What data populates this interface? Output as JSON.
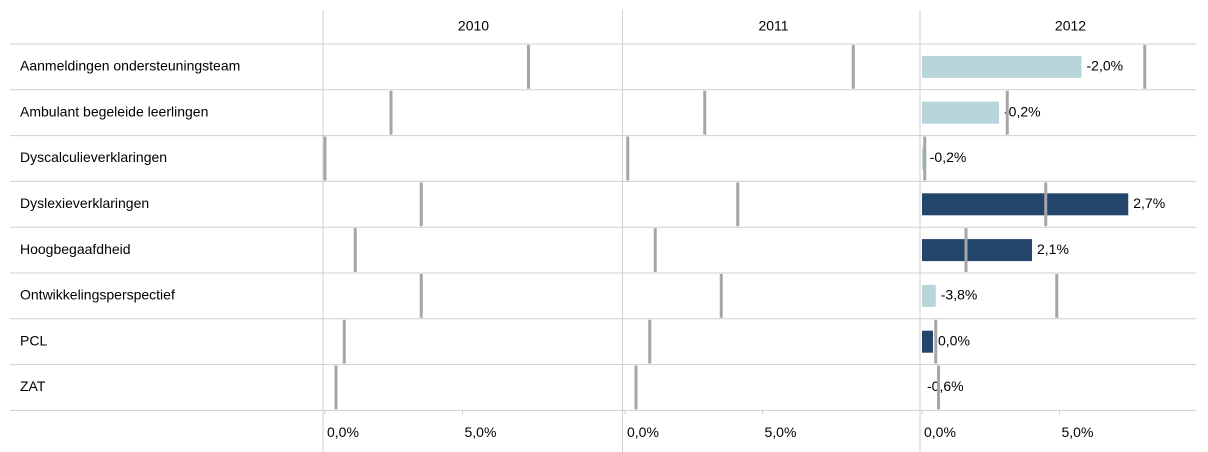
{
  "chart_data": {
    "type": "bar",
    "orientation": "horizontal",
    "categories": [
      "Aanmeldingen ondersteuningsteam",
      "Ambulant begeleide leerlingen",
      "Dyscalculieverklaringen",
      "Dyslexieverklaringen",
      "Hoogbegaafdheid",
      "Ontwikkelingsperspectief",
      "PCL",
      "ZAT"
    ],
    "xlim": [
      0,
      10.8
    ],
    "xticks": [
      {
        "value": 0,
        "label": "0,0%"
      },
      {
        "value": 5,
        "label": "5,0%"
      }
    ],
    "marker_color": "#a6a6a6",
    "colors": {
      "negative": "#b7d5db",
      "positive": "#23446b"
    },
    "series": [
      {
        "name": "2010",
        "reference": [
          7.4,
          2.4,
          0.0,
          3.5,
          1.1,
          3.5,
          0.7,
          0.4
        ]
      },
      {
        "name": "2011",
        "reference": [
          8.3,
          2.9,
          0.1,
          4.1,
          1.1,
          3.5,
          0.9,
          0.4
        ]
      },
      {
        "name": "2012",
        "reference": [
          8.1,
          3.1,
          0.1,
          4.5,
          1.6,
          4.9,
          0.5,
          0.6
        ],
        "values": [
          5.8,
          2.8,
          0.1,
          7.5,
          4.0,
          0.5,
          0.4,
          0.0
        ],
        "change_values": [
          -2.0,
          -0.2,
          -0.2,
          2.7,
          2.1,
          -3.8,
          0.0,
          -0.6
        ],
        "change_labels": [
          "-2,0%",
          "-0,2%",
          "-0,2%",
          "2,7%",
          "2,1%",
          "-3,8%",
          "0,0%",
          "-0,6%"
        ]
      }
    ]
  }
}
